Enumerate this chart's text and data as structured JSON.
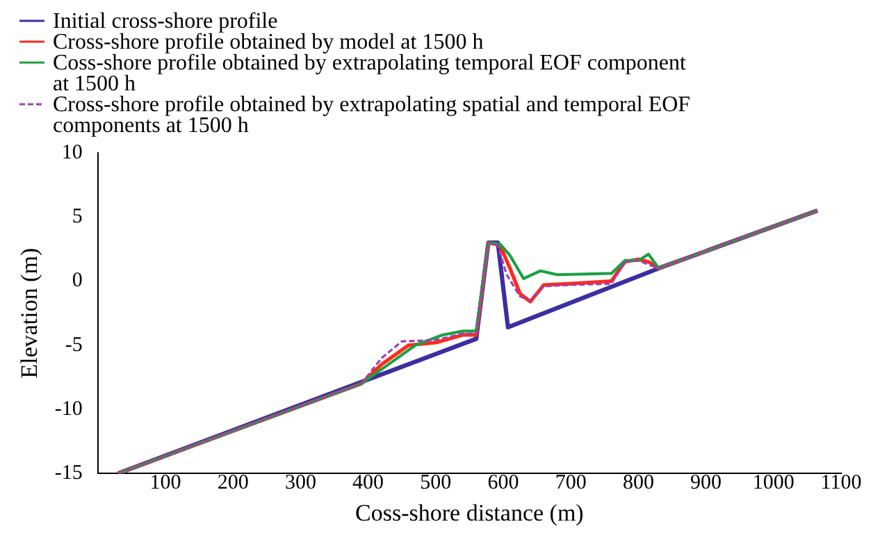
{
  "chart_data": {
    "type": "line",
    "xlabel": "Coss-shore distance (m)",
    "ylabel": "Elevation (m)",
    "xlim": [
      0,
      1100
    ],
    "xticks": [
      100,
      200,
      300,
      400,
      500,
      600,
      700,
      800,
      900,
      1000,
      1100
    ],
    "ylim": [
      -15,
      10
    ],
    "yticks": [
      -15,
      -10,
      -5,
      0,
      5,
      10
    ],
    "grid": false,
    "legend": "top left",
    "marker": "none",
    "series": [
      {
        "name": "Initial cross-shore profile",
        "color": "#3a2fa0",
        "line_style": "solid",
        "x": [
          30,
          560,
          578,
          592,
          607,
          830,
          1065
        ],
        "values": [
          -15,
          -4.5,
          3,
          3,
          -3.6,
          1,
          5.5
        ]
      },
      {
        "name": "Cross-shore profile obtained by model at 1500 h",
        "color": "#ff2a1a",
        "line_style": "solid",
        "x": [
          30,
          390,
          420,
          460,
          500,
          540,
          560,
          578,
          595,
          610,
          625,
          640,
          660,
          700,
          760,
          780,
          800,
          815,
          830,
          1065
        ],
        "values": [
          -15,
          -8,
          -6.5,
          -5,
          -4.8,
          -4.2,
          -4.2,
          3,
          2.8,
          1,
          -1,
          -1.6,
          -0.3,
          -0.2,
          0,
          1.5,
          1.7,
          1.5,
          1,
          5.5
        ]
      },
      {
        "name": "Coss-shore profile obtained by extrapolating temporal EOF component at 1500 h",
        "color": "#1aa040",
        "line_style": "solid",
        "x": [
          30,
          390,
          430,
          470,
          510,
          540,
          560,
          578,
          595,
          610,
          630,
          655,
          680,
          760,
          780,
          800,
          815,
          830,
          1065
        ],
        "values": [
          -15,
          -8,
          -6.5,
          -5,
          -4.2,
          -3.9,
          -3.9,
          3,
          2.9,
          2,
          0.2,
          0.8,
          0.5,
          0.6,
          1.6,
          1.6,
          2.1,
          1,
          5.5
        ]
      },
      {
        "name": "Cross-shore profile obtained by extrapolating spatial and temporal EOF components at 1500 h",
        "color": "#a040b0",
        "line_style": "dashed",
        "x": [
          30,
          390,
          420,
          450,
          500,
          540,
          560,
          578,
          592,
          605,
          625,
          640,
          660,
          700,
          760,
          780,
          800,
          830,
          1065
        ],
        "values": [
          -15,
          -8,
          -6,
          -4.7,
          -4.6,
          -4.1,
          -4.1,
          3,
          2.8,
          0.5,
          -1.2,
          -1.5,
          -0.4,
          -0.3,
          -0.2,
          1.5,
          1.6,
          1,
          5.5
        ]
      }
    ]
  }
}
